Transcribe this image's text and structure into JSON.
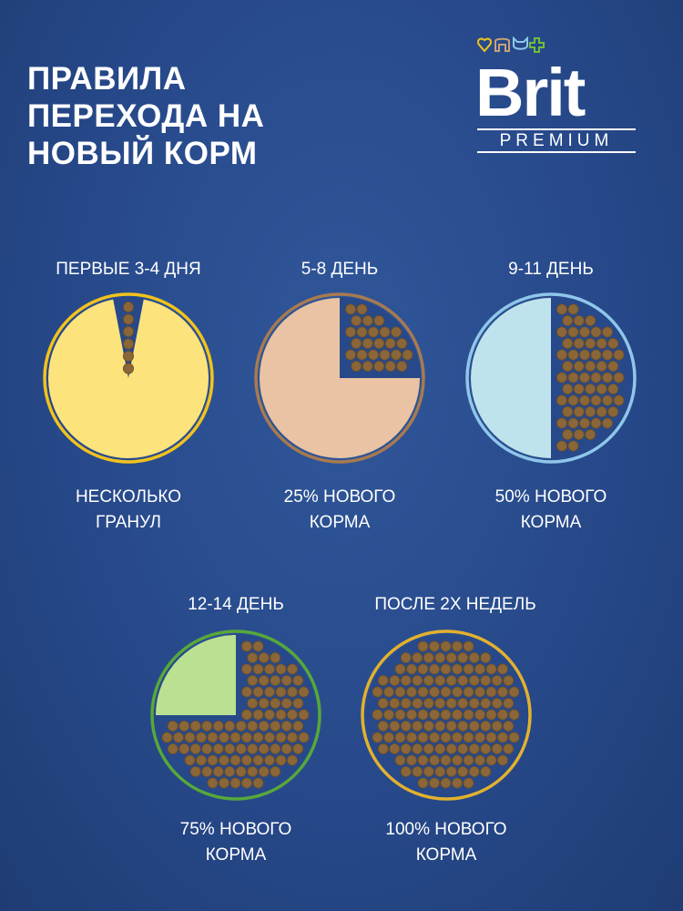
{
  "title": [
    "ПРАВИЛА",
    "ПЕРЕХОДА НА",
    "НОВЫЙ КОРМ"
  ],
  "logo": {
    "brand": "Brit",
    "line": "PREMIUM",
    "icons": [
      "heart-icon",
      "dog-icon",
      "cat-icon",
      "plus-icon"
    ]
  },
  "colors": {
    "background": "#27498a",
    "kibble": "#8a6638"
  },
  "stages": [
    {
      "period": "ПЕРВЫЕ 3-4 ДНЯ",
      "caption": [
        "НЕСКОЛЬКО",
        "ГРАНУЛ"
      ],
      "ring": "#f2c31c",
      "fill": "#fde37c"
    },
    {
      "period": "5-8 ДЕНЬ",
      "caption": [
        "25% НОВОГО",
        "КОРМА"
      ],
      "new_percent": 25,
      "ring": "#a87a50",
      "fill": "#e9c3a3"
    },
    {
      "period": "9-11 ДЕНЬ",
      "caption": [
        "50% НОВОГО",
        "КОРМА"
      ],
      "new_percent": 50,
      "ring": "#8fc6ea",
      "fill": "#bfe3ec"
    },
    {
      "period": "12-14 ДЕНЬ",
      "caption": [
        "75% НОВОГО",
        "КОРМА"
      ],
      "new_percent": 75,
      "ring": "#57a83a",
      "fill": "#bae191"
    },
    {
      "period": "ПОСЛЕ 2Х НЕДЕЛЬ",
      "caption": [
        "100% НОВОГО",
        "КОРМА"
      ],
      "new_percent": 100,
      "ring": "#e2b12e",
      "fill": "#27498a"
    }
  ]
}
